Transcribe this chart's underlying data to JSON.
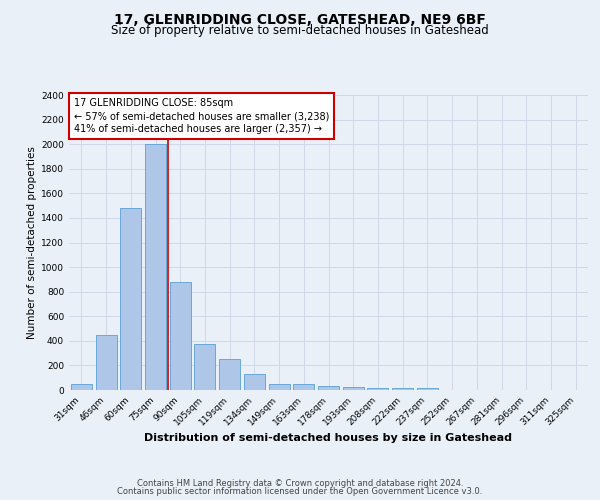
{
  "title1": "17, GLENRIDDING CLOSE, GATESHEAD, NE9 6BF",
  "title2": "Size of property relative to semi-detached houses in Gateshead",
  "xlabel": "Distribution of semi-detached houses by size in Gateshead",
  "ylabel": "Number of semi-detached properties",
  "categories": [
    "31sqm",
    "46sqm",
    "60sqm",
    "75sqm",
    "90sqm",
    "105sqm",
    "119sqm",
    "134sqm",
    "149sqm",
    "163sqm",
    "178sqm",
    "193sqm",
    "208sqm",
    "222sqm",
    "237sqm",
    "252sqm",
    "267sqm",
    "281sqm",
    "296sqm",
    "311sqm",
    "325sqm"
  ],
  "values": [
    50,
    450,
    1480,
    2000,
    875,
    375,
    255,
    130,
    50,
    50,
    30,
    25,
    20,
    20,
    20,
    0,
    0,
    0,
    0,
    0,
    0
  ],
  "bar_color": "#aec6e8",
  "bar_edge_color": "#5a9fd4",
  "grid_color": "#d0d8e8",
  "background_color": "#eaf0f8",
  "plot_bg_color": "#eaf0f8",
  "annotation_text": "17 GLENRIDDING CLOSE: 85sqm\n← 57% of semi-detached houses are smaller (3,238)\n41% of semi-detached houses are larger (2,357) →",
  "annotation_box_color": "#ffffff",
  "annotation_box_edge": "#cc0000",
  "ylim": [
    0,
    2400
  ],
  "yticks": [
    0,
    200,
    400,
    600,
    800,
    1000,
    1200,
    1400,
    1600,
    1800,
    2000,
    2200,
    2400
  ],
  "footer1": "Contains HM Land Registry data © Crown copyright and database right 2024.",
  "footer2": "Contains public sector information licensed under the Open Government Licence v3.0.",
  "title1_fontsize": 10,
  "title2_fontsize": 8.5,
  "xlabel_fontsize": 8,
  "ylabel_fontsize": 7.5,
  "tick_fontsize": 6.5,
  "annotation_fontsize": 7,
  "footer_fontsize": 6
}
